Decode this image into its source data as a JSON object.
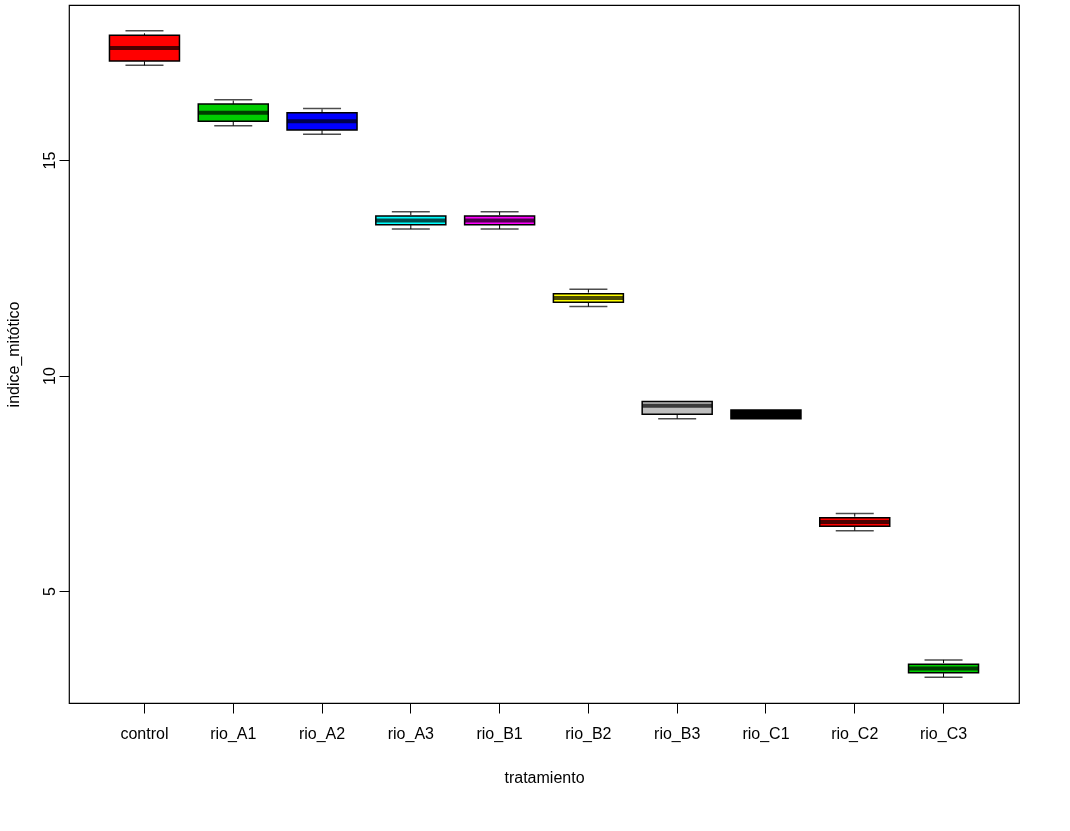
{
  "chart_data": {
    "type": "box",
    "xlabel": "tratamiento",
    "ylabel": "indice_mitótico",
    "categories": [
      "control",
      "rio_A1",
      "rio_A2",
      "rio_A3",
      "rio_B1",
      "rio_B2",
      "rio_B3",
      "rio_C1",
      "rio_C2",
      "rio_C3"
    ],
    "colors": [
      "#ff0000",
      "#00cd00",
      "#0000ff",
      "#00ffff",
      "#ff00ff",
      "#ffff00",
      "#bebebe",
      "#000000",
      "#ff0000",
      "#00cd00"
    ],
    "boxes": [
      {
        "low": 17.2,
        "q1": 17.3,
        "median": 17.6,
        "q3": 17.9,
        "high": 18.0
      },
      {
        "low": 15.8,
        "q1": 15.9,
        "median": 16.1,
        "q3": 16.3,
        "high": 16.4
      },
      {
        "low": 15.6,
        "q1": 15.7,
        "median": 15.9,
        "q3": 16.1,
        "high": 16.2
      },
      {
        "low": 13.4,
        "q1": 13.5,
        "median": 13.6,
        "q3": 13.7,
        "high": 13.8
      },
      {
        "low": 13.4,
        "q1": 13.5,
        "median": 13.6,
        "q3": 13.7,
        "high": 13.8
      },
      {
        "low": 11.6,
        "q1": 11.7,
        "median": 11.8,
        "q3": 11.9,
        "high": 12.0
      },
      {
        "low": 9.0,
        "q1": 9.1,
        "median": 9.3,
        "q3": 9.4,
        "high": 9.4
      },
      {
        "low": 9.0,
        "q1": 9.0,
        "median": 9.1,
        "q3": 9.2,
        "high": 9.2
      },
      {
        "low": 6.4,
        "q1": 6.5,
        "median": 6.6,
        "q3": 6.7,
        "high": 6.8
      },
      {
        "low": 3.0,
        "q1": 3.1,
        "median": 3.2,
        "q3": 3.3,
        "high": 3.4
      }
    ],
    "ylim": [
      2.4,
      18.6
    ],
    "yticks": [
      5,
      10,
      15
    ]
  }
}
